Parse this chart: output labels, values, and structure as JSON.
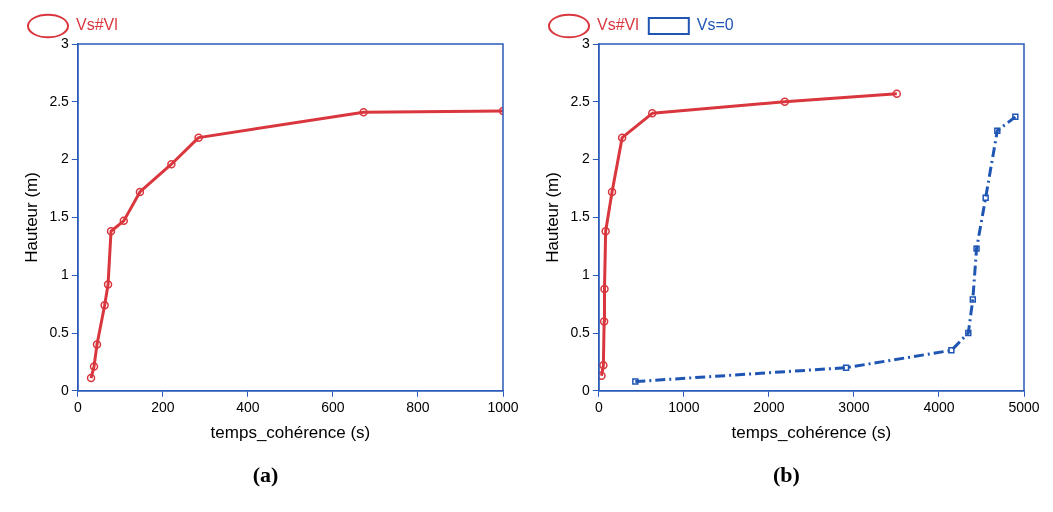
{
  "chart_data": [
    {
      "type": "line",
      "xlabel": "temps_cohérence (s)",
      "ylabel": "Hauteur (m)",
      "annotations": [
        "(a)"
      ],
      "xlim": [
        0,
        1000
      ],
      "xticks": [
        0,
        200,
        400,
        600,
        800,
        1000
      ],
      "ylim": [
        0,
        3
      ],
      "yticks": [
        0,
        0.5,
        1,
        1.5,
        2,
        2.5,
        3
      ],
      "grid": false,
      "legend": "top left",
      "series": [
        {
          "name": "Vs#Vl",
          "color": "#d9363e",
          "marker": "circle",
          "line_style": "solid",
          "x": [
            31,
            38,
            45,
            63,
            71,
            78,
            108,
            146,
            220,
            284,
            672,
            1000
          ],
          "values": [
            0.11,
            0.21,
            0.4,
            0.74,
            0.92,
            1.38,
            1.47,
            1.72,
            1.96,
            2.19,
            2.41,
            2.42
          ]
        }
      ]
    },
    {
      "type": "line",
      "xlabel": "temps_cohérence (s)",
      "ylabel": "Hauteur (m)",
      "annotations": [
        "(b)"
      ],
      "xlim": [
        0,
        5000
      ],
      "xticks": [
        0,
        1000,
        2000,
        3000,
        4000,
        5000
      ],
      "ylim": [
        0,
        3
      ],
      "yticks": [
        0,
        0.5,
        1,
        1.5,
        2,
        2.5,
        3
      ],
      "grid": false,
      "legend": "top left",
      "series": [
        {
          "name": "Vs#Vl",
          "color": "#d9363e",
          "marker": "circle",
          "line_style": "solid",
          "x": [
            31,
            53,
            62,
            66,
            80,
            155,
            274,
            628,
            2186,
            3504
          ],
          "values": [
            0.13,
            0.22,
            0.6,
            0.88,
            1.38,
            1.72,
            2.19,
            2.4,
            2.5,
            2.57
          ]
        },
        {
          "name": "Vs=0",
          "color": "#1f56b3",
          "marker": "square",
          "line_style": "dashed",
          "x": [
            429,
            2907,
            4146,
            4345,
            4398,
            4442,
            4549,
            4686,
            4898
          ],
          "values": [
            0.08,
            0.2,
            0.35,
            0.5,
            0.79,
            1.23,
            1.67,
            2.25,
            2.37
          ]
        }
      ]
    }
  ]
}
